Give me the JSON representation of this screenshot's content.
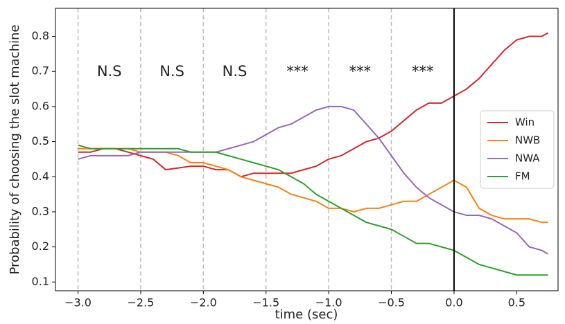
{
  "chart_data": {
    "type": "line",
    "xlabel": "time (sec)",
    "ylabel": "Probability of choosing the slot machine",
    "x": [
      -3.0,
      -2.9,
      -2.8,
      -2.7,
      -2.6,
      -2.5,
      -2.4,
      -2.3,
      -2.2,
      -2.1,
      -2.0,
      -1.9,
      -1.8,
      -1.7,
      -1.6,
      -1.5,
      -1.4,
      -1.3,
      -1.2,
      -1.1,
      -1.0,
      -0.9,
      -0.8,
      -0.7,
      -0.6,
      -0.5,
      -0.4,
      -0.3,
      -0.2,
      -0.1,
      0.0,
      0.1,
      0.2,
      0.3,
      0.4,
      0.5,
      0.6,
      0.7,
      0.75
    ],
    "series": [
      {
        "name": "Win",
        "color": "#d62728",
        "values": [
          0.47,
          0.47,
          0.48,
          0.48,
          0.47,
          0.46,
          0.45,
          0.42,
          0.425,
          0.43,
          0.43,
          0.42,
          0.42,
          0.4,
          0.41,
          0.41,
          0.41,
          0.41,
          0.42,
          0.43,
          0.45,
          0.46,
          0.48,
          0.5,
          0.51,
          0.53,
          0.56,
          0.59,
          0.61,
          0.61,
          0.63,
          0.65,
          0.68,
          0.72,
          0.76,
          0.79,
          0.8,
          0.8,
          0.81
        ]
      },
      {
        "name": "NWB",
        "color": "#ff7f0e",
        "values": [
          0.48,
          0.48,
          0.48,
          0.48,
          0.48,
          0.47,
          0.47,
          0.47,
          0.46,
          0.44,
          0.44,
          0.43,
          0.42,
          0.4,
          0.39,
          0.38,
          0.37,
          0.35,
          0.34,
          0.33,
          0.31,
          0.31,
          0.3,
          0.31,
          0.31,
          0.32,
          0.33,
          0.33,
          0.35,
          0.37,
          0.39,
          0.37,
          0.31,
          0.29,
          0.28,
          0.28,
          0.28,
          0.27,
          0.27
        ]
      },
      {
        "name": "NWA",
        "color": "#9467bd",
        "values": [
          0.45,
          0.46,
          0.46,
          0.46,
          0.46,
          0.47,
          0.47,
          0.47,
          0.47,
          0.47,
          0.47,
          0.47,
          0.48,
          0.49,
          0.5,
          0.52,
          0.54,
          0.55,
          0.57,
          0.59,
          0.6,
          0.6,
          0.59,
          0.55,
          0.51,
          0.46,
          0.41,
          0.37,
          0.34,
          0.32,
          0.3,
          0.29,
          0.29,
          0.28,
          0.26,
          0.24,
          0.2,
          0.19,
          0.18
        ]
      },
      {
        "name": "FM",
        "color": "#2ca02c",
        "values": [
          0.49,
          0.48,
          0.48,
          0.48,
          0.48,
          0.48,
          0.48,
          0.48,
          0.48,
          0.47,
          0.47,
          0.47,
          0.46,
          0.45,
          0.44,
          0.43,
          0.42,
          0.4,
          0.38,
          0.35,
          0.33,
          0.31,
          0.29,
          0.27,
          0.26,
          0.25,
          0.23,
          0.21,
          0.21,
          0.2,
          0.19,
          0.17,
          0.15,
          0.14,
          0.13,
          0.12,
          0.12,
          0.12,
          0.12
        ]
      }
    ],
    "xlim": [
      -3.18,
      0.83
    ],
    "ylim": [
      0.075,
      0.88
    ],
    "xticks": [
      {
        "value": -3.0,
        "label": "−3.0"
      },
      {
        "value": -2.5,
        "label": "−2.5"
      },
      {
        "value": -2.0,
        "label": "−2.0"
      },
      {
        "value": -1.5,
        "label": "−1.5"
      },
      {
        "value": -1.0,
        "label": "−1.0"
      },
      {
        "value": -0.5,
        "label": "−0.5"
      },
      {
        "value": 0.0,
        "label": "0.0"
      },
      0.5
    ],
    "yticks": [
      0.1,
      0.2,
      0.3,
      0.4,
      0.5,
      0.6,
      0.7,
      0.8
    ],
    "dashed_lines": [
      -3.0,
      -2.5,
      -2.0,
      -1.5,
      -1.0,
      -0.5
    ],
    "reference_line": 0.0,
    "annotations": [
      "N.S",
      "N.S",
      "N.S",
      "***",
      "***",
      "***"
    ],
    "legend": "center right"
  }
}
